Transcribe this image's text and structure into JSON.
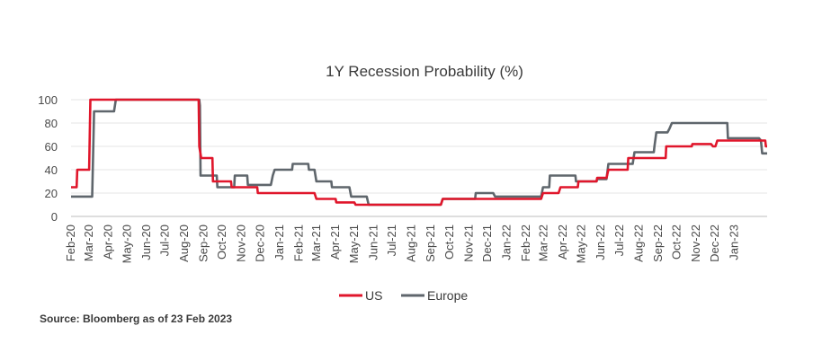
{
  "source_note": "Source: Bloomberg as of 23 Feb 2023",
  "chart_data": {
    "type": "line",
    "title": "1Y Recession Probability (%)",
    "xlabel": "",
    "ylabel": "",
    "ylim": [
      0,
      100
    ],
    "yticks": [
      0,
      20,
      40,
      60,
      80,
      100
    ],
    "grid": true,
    "legend_position": "bottom",
    "x_range": [
      "2020-02-01",
      "2023-02-23"
    ],
    "x_tick_labels": [
      "Feb-20",
      "Mar-20",
      "Apr-20",
      "May-20",
      "Jun-20",
      "Jul-20",
      "Aug-20",
      "Sep-20",
      "Oct-20",
      "Nov-20",
      "Dec-20",
      "Jan-21",
      "Feb-21",
      "Mar-21",
      "Apr-21",
      "May-21",
      "Jun-21",
      "Jul-21",
      "Aug-21",
      "Sep-21",
      "Oct-21",
      "Nov-21",
      "Dec-21",
      "Jan-22",
      "Feb-22",
      "Mar-22",
      "Apr-22",
      "May-22",
      "Jun-22",
      "Jul-22",
      "Aug-22",
      "Sep-22",
      "Oct-22",
      "Nov-22",
      "Dec-22",
      "Jan-23"
    ],
    "series": [
      {
        "name": "US",
        "color": "#e0162b",
        "points": [
          [
            "2020-02-01",
            25
          ],
          [
            "2020-02-10",
            25
          ],
          [
            "2020-02-11",
            40
          ],
          [
            "2020-03-01",
            40
          ],
          [
            "2020-03-03",
            100
          ],
          [
            "2020-08-24",
            100
          ],
          [
            "2020-08-25",
            60
          ],
          [
            "2020-08-28",
            50
          ],
          [
            "2020-09-15",
            50
          ],
          [
            "2020-09-16",
            30
          ],
          [
            "2020-10-15",
            30
          ],
          [
            "2020-10-16",
            25
          ],
          [
            "2020-11-26",
            25
          ],
          [
            "2020-11-27",
            20
          ],
          [
            "2021-02-26",
            20
          ],
          [
            "2021-03-01",
            15
          ],
          [
            "2021-04-01",
            15
          ],
          [
            "2021-04-02",
            12
          ],
          [
            "2021-05-01",
            12
          ],
          [
            "2021-05-03",
            10
          ],
          [
            "2021-09-17",
            10
          ],
          [
            "2021-09-20",
            15
          ],
          [
            "2022-02-25",
            15
          ],
          [
            "2022-02-28",
            20
          ],
          [
            "2022-03-25",
            20
          ],
          [
            "2022-03-28",
            25
          ],
          [
            "2022-04-25",
            25
          ],
          [
            "2022-04-26",
            30
          ],
          [
            "2022-05-25",
            30
          ],
          [
            "2022-05-26",
            33
          ],
          [
            "2022-06-10",
            33
          ],
          [
            "2022-06-13",
            40
          ],
          [
            "2022-07-14",
            40
          ],
          [
            "2022-07-15",
            50
          ],
          [
            "2022-09-13",
            50
          ],
          [
            "2022-09-14",
            60
          ],
          [
            "2022-10-25",
            60
          ],
          [
            "2022-10-26",
            62
          ],
          [
            "2022-11-25",
            62
          ],
          [
            "2022-11-28",
            60
          ],
          [
            "2022-12-02",
            60
          ],
          [
            "2022-12-05",
            65
          ],
          [
            "2023-02-17",
            65
          ],
          [
            "2023-02-20",
            65
          ],
          [
            "2023-02-21",
            60
          ],
          [
            "2023-02-23",
            60
          ]
        ]
      },
      {
        "name": "Europe",
        "color": "#5f666c",
        "points": [
          [
            "2020-02-01",
            17
          ],
          [
            "2020-03-06",
            17
          ],
          [
            "2020-03-09",
            90
          ],
          [
            "2020-04-10",
            90
          ],
          [
            "2020-04-13",
            100
          ],
          [
            "2020-08-25",
            100
          ],
          [
            "2020-08-26",
            95
          ],
          [
            "2020-08-27",
            35
          ],
          [
            "2020-09-22",
            35
          ],
          [
            "2020-09-23",
            25
          ],
          [
            "2020-10-20",
            25
          ],
          [
            "2020-10-21",
            35
          ],
          [
            "2020-11-10",
            35
          ],
          [
            "2020-11-11",
            27
          ],
          [
            "2020-12-18",
            27
          ],
          [
            "2020-12-21",
            35
          ],
          [
            "2020-12-24",
            40
          ],
          [
            "2021-01-21",
            40
          ],
          [
            "2021-01-22",
            45
          ],
          [
            "2021-02-16",
            45
          ],
          [
            "2021-02-17",
            40
          ],
          [
            "2021-02-26",
            40
          ],
          [
            "2021-03-01",
            30
          ],
          [
            "2021-03-25",
            30
          ],
          [
            "2021-03-26",
            25
          ],
          [
            "2021-04-23",
            25
          ],
          [
            "2021-04-26",
            17
          ],
          [
            "2021-05-21",
            17
          ],
          [
            "2021-05-24",
            10
          ],
          [
            "2021-09-17",
            10
          ],
          [
            "2021-09-20",
            15
          ],
          [
            "2021-11-11",
            15
          ],
          [
            "2021-11-12",
            20
          ],
          [
            "2021-12-10",
            20
          ],
          [
            "2021-12-13",
            17
          ],
          [
            "2022-02-25",
            17
          ],
          [
            "2022-02-28",
            25
          ],
          [
            "2022-03-10",
            25
          ],
          [
            "2022-03-11",
            35
          ],
          [
            "2022-04-21",
            35
          ],
          [
            "2022-04-22",
            30
          ],
          [
            "2022-05-25",
            30
          ],
          [
            "2022-05-26",
            32
          ],
          [
            "2022-06-10",
            32
          ],
          [
            "2022-06-13",
            45
          ],
          [
            "2022-07-22",
            45
          ],
          [
            "2022-07-25",
            55
          ],
          [
            "2022-08-25",
            55
          ],
          [
            "2022-08-26",
            60
          ],
          [
            "2022-08-29",
            72
          ],
          [
            "2022-09-16",
            72
          ],
          [
            "2022-09-19",
            75
          ],
          [
            "2022-09-23",
            80
          ],
          [
            "2022-12-21",
            80
          ],
          [
            "2022-12-22",
            67
          ],
          [
            "2023-02-10",
            67
          ],
          [
            "2023-02-13",
            65
          ],
          [
            "2023-02-15",
            54
          ],
          [
            "2023-02-23",
            54
          ]
        ]
      }
    ]
  }
}
